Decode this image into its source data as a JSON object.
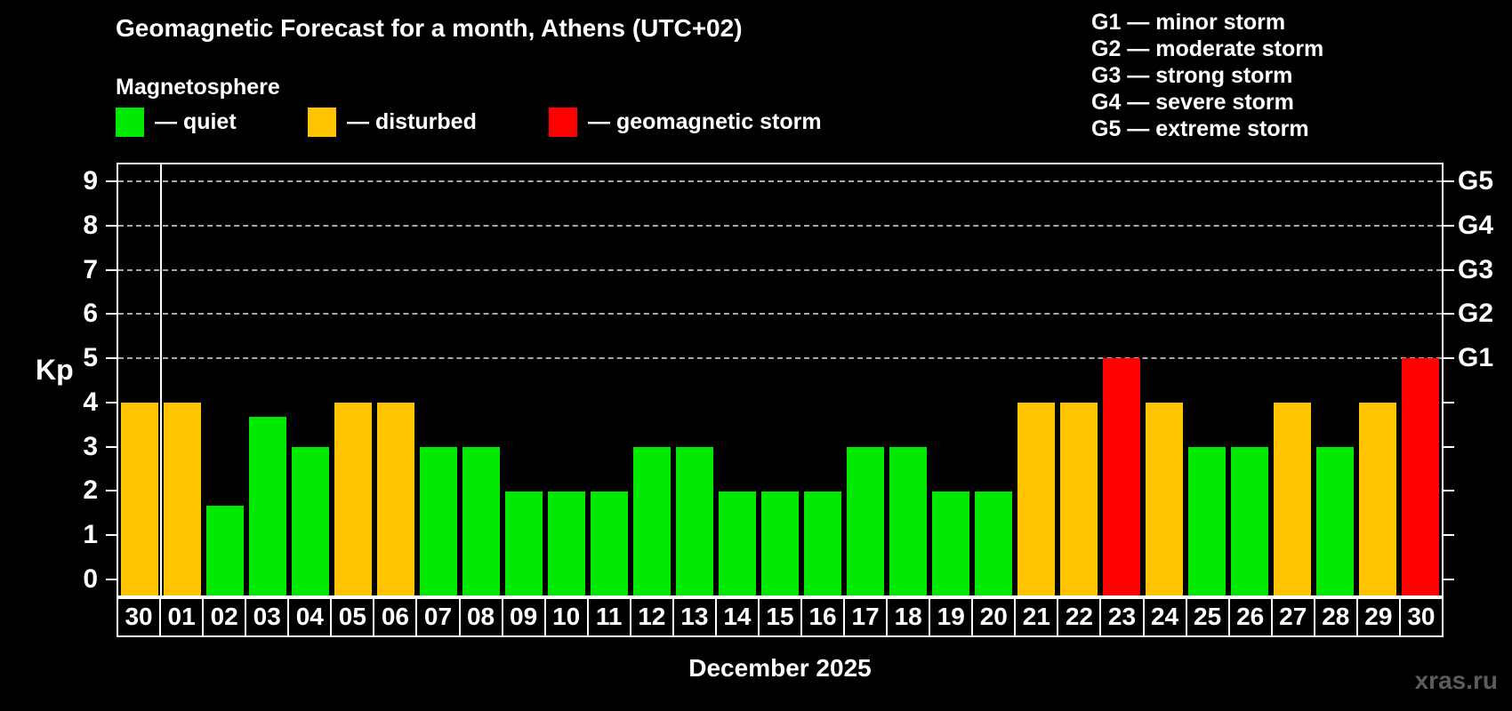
{
  "title": "Geomagnetic Forecast for a month, Athens (UTC+02)",
  "subtitle": "Magnetosphere",
  "legend": {
    "items": [
      {
        "status": "quiet",
        "label": "— quiet"
      },
      {
        "status": "disturbed",
        "label": "— disturbed"
      },
      {
        "status": "storm",
        "label": "— geomagnetic storm"
      }
    ]
  },
  "storm_scale_legend": [
    "G1 — minor storm",
    "G2 — moderate storm",
    "G3 — strong storm",
    "G4 — severe storm",
    "G5 — extreme storm"
  ],
  "axis": {
    "y_label": "Kp",
    "y_ticks": [
      "0",
      "1",
      "2",
      "3",
      "4",
      "5",
      "6",
      "7",
      "8",
      "9"
    ],
    "right_labels": [
      {
        "kp": 5,
        "label": "G1"
      },
      {
        "kp": 6,
        "label": "G2"
      },
      {
        "kp": 7,
        "label": "G3"
      },
      {
        "kp": 8,
        "label": "G4"
      },
      {
        "kp": 9,
        "label": "G5"
      }
    ],
    "x_label": "December 2025"
  },
  "watermark": "xras.ru",
  "colors": {
    "quiet": "#00e800",
    "disturbed": "#ffc300",
    "storm": "#ff0000",
    "grid": "#a8a8a8",
    "axis": "#ffffff",
    "watermark": "#5c5c5c"
  },
  "chart_data": {
    "type": "bar",
    "title": "Geomagnetic Forecast for a month, Athens (UTC+02)",
    "xlabel": "December 2025",
    "ylabel": "Kp",
    "categories": [
      "30",
      "01",
      "02",
      "03",
      "04",
      "05",
      "06",
      "07",
      "08",
      "09",
      "10",
      "11",
      "12",
      "13",
      "14",
      "15",
      "16",
      "17",
      "18",
      "19",
      "20",
      "21",
      "22",
      "23",
      "24",
      "25",
      "26",
      "27",
      "28",
      "29",
      "30"
    ],
    "values": [
      4,
      4,
      1.67,
      3.67,
      3,
      4,
      4,
      3,
      3,
      2,
      2,
      2,
      3,
      3,
      2,
      2,
      2,
      3,
      3,
      2,
      2,
      4,
      4,
      5,
      4,
      3,
      3,
      4,
      3,
      4,
      5
    ],
    "statuses": [
      "disturbed",
      "disturbed",
      "quiet",
      "quiet",
      "quiet",
      "disturbed",
      "disturbed",
      "quiet",
      "quiet",
      "quiet",
      "quiet",
      "quiet",
      "quiet",
      "quiet",
      "quiet",
      "quiet",
      "quiet",
      "quiet",
      "quiet",
      "quiet",
      "quiet",
      "disturbed",
      "disturbed",
      "storm",
      "disturbed",
      "quiet",
      "quiet",
      "disturbed",
      "quiet",
      "disturbed",
      "storm"
    ],
    "ylim": [
      -0.36,
      9.38
    ],
    "yticks": [
      0,
      1,
      2,
      3,
      4,
      5,
      6,
      7,
      8,
      9
    ],
    "gridline_levels": [
      5,
      6,
      7,
      8,
      9
    ],
    "grid_style": "dashed horizontal gridlines only at storm levels Kp 5-9",
    "separator_after_index": 0,
    "legend_position": "top-left",
    "right_axis_storm_scale": {
      "G1": 5,
      "G2": 6,
      "G3": 7,
      "G4": 8,
      "G5": 9
    }
  }
}
